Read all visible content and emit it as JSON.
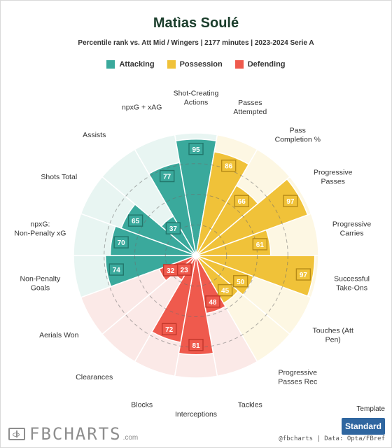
{
  "header": {
    "title": "Matìas Soulé",
    "subtitle": "Percentile rank vs. Att Mid / Wingers | 2177 minutes | 2023-2024 Serie A"
  },
  "legend": [
    {
      "label": "Attacking",
      "color": "#3aa99c"
    },
    {
      "label": "Possession",
      "color": "#f0c239"
    },
    {
      "label": "Defending",
      "color": "#ef5a4d"
    }
  ],
  "colors": {
    "Attacking": {
      "fill": "#3aa99c",
      "bg": "#e8f5f2",
      "box": "#22766b"
    },
    "Possession": {
      "fill": "#f0c239",
      "bg": "#fdf7e3",
      "box": "#b68a18"
    },
    "Defending": {
      "fill": "#ef5a4d",
      "bg": "#fbe9e7",
      "box": "#c2362b"
    }
  },
  "chart_data": {
    "type": "radar",
    "title": "Matìas Soulé",
    "subtitle": "Percentile rank vs. Att Mid / Wingers | 2177 minutes | 2023-2024 Serie A",
    "scale": [
      0,
      100
    ],
    "metrics": [
      {
        "label": "Shot-Creating Actions",
        "value": 95,
        "group": "Attacking"
      },
      {
        "label": "Passes Attempted",
        "value": 86,
        "group": "Possession"
      },
      {
        "label": "Pass Completion %",
        "value": 66,
        "group": "Possession"
      },
      {
        "label": "Progressive Passes",
        "value": 97,
        "group": "Possession"
      },
      {
        "label": "Progressive Carries",
        "value": 61,
        "group": "Possession"
      },
      {
        "label": "Successful Take-Ons",
        "value": 97,
        "group": "Possession"
      },
      {
        "label": "Touches (Att Pen)",
        "value": 50,
        "group": "Possession"
      },
      {
        "label": "Progressive Passes Rec",
        "value": 45,
        "group": "Possession"
      },
      {
        "label": "Tackles",
        "value": 48,
        "group": "Defending"
      },
      {
        "label": "Interceptions",
        "value": 81,
        "group": "Defending"
      },
      {
        "label": "Blocks",
        "value": 72,
        "group": "Defending"
      },
      {
        "label": "Clearances",
        "value": 23,
        "group": "Defending"
      },
      {
        "label": "Aerials Won",
        "value": 32,
        "group": "Defending"
      },
      {
        "label": "Non-Penalty Goals",
        "value": 74,
        "group": "Attacking"
      },
      {
        "label": "npxG: Non-Penalty xG",
        "value": 70,
        "group": "Attacking"
      },
      {
        "label": "Shots Total",
        "value": 65,
        "group": "Attacking"
      },
      {
        "label": "Assists",
        "value": 37,
        "group": "Attacking"
      },
      {
        "label": "npxG + xAG",
        "value": 77,
        "group": "Attacking"
      }
    ]
  },
  "footer": {
    "template_label": "Template",
    "template_button": "Standard",
    "brand": "FBCHARTS",
    "brand_domain": ".com",
    "credit": "@fbcharts | Data: Opta/FBref"
  }
}
